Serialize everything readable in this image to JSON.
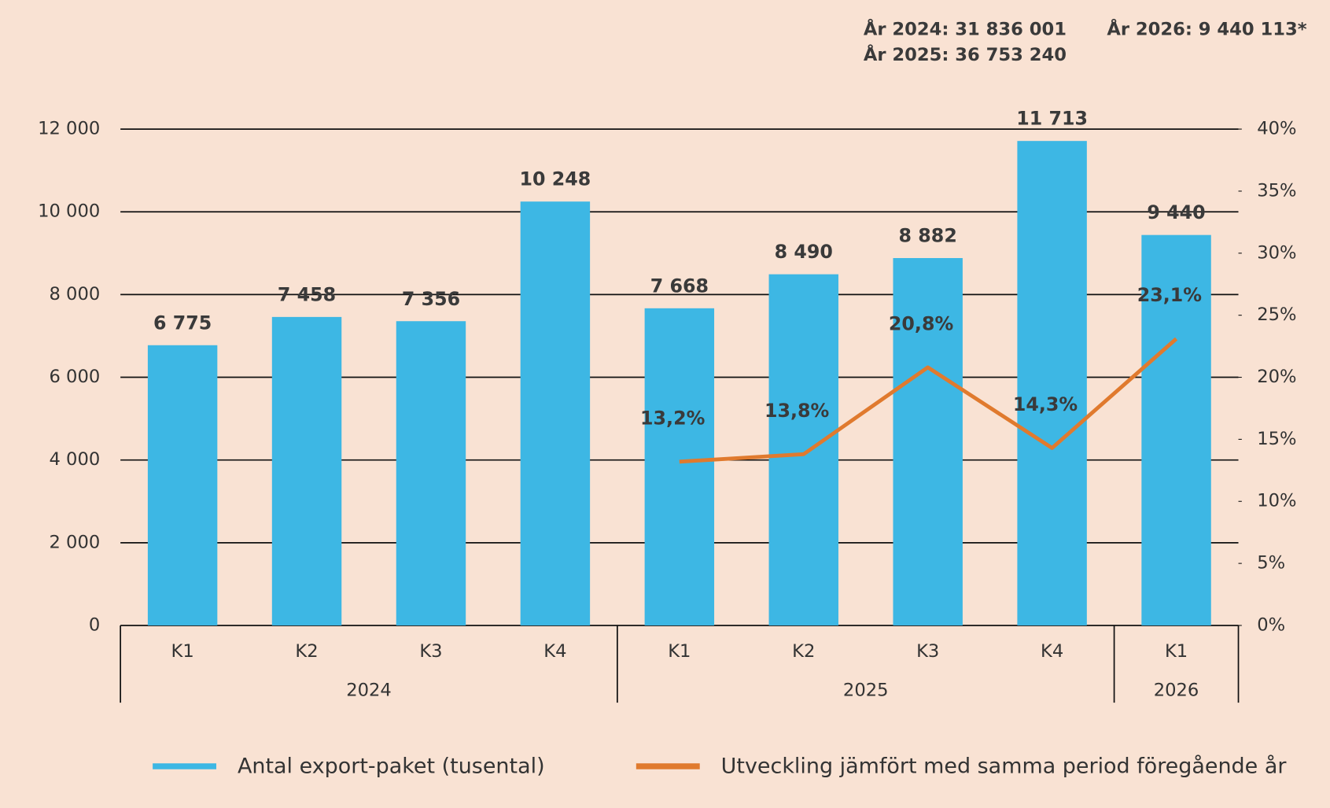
{
  "chart_data": {
    "type": "bar",
    "annotations": [
      "År 2024: 31 836 001",
      "År 2025: 36 753 240",
      "År 2026: 9 440 113*"
    ],
    "categories": [
      "K1",
      "K2",
      "K3",
      "K4",
      "K1",
      "K2",
      "K3",
      "K4",
      "K1"
    ],
    "category_groups": [
      "2024",
      "2024",
      "2024",
      "2024",
      "2025",
      "2025",
      "2025",
      "2025",
      "2026"
    ],
    "series": [
      {
        "name": "Antal export-paket (tusental)",
        "type": "bar",
        "color": "#3db7e4",
        "values": [
          6775,
          7458,
          7356,
          10248,
          7668,
          8490,
          8882,
          11713,
          9440
        ],
        "value_labels": [
          "6 775",
          "7 458",
          "7 356",
          "10 248",
          "7 668",
          "8 490",
          "8 882",
          "11 713",
          "9 440"
        ]
      },
      {
        "name": "Utveckling jämfört med samma period föregående år",
        "type": "line",
        "color": "#e07a2e",
        "axis": "y2",
        "values": [
          null,
          null,
          null,
          null,
          13.2,
          13.8,
          20.8,
          14.3,
          23.1
        ],
        "value_labels": [
          null,
          null,
          null,
          null,
          "13,2%",
          "13,8%",
          "20,8%",
          "14,3%",
          "23,1%"
        ]
      }
    ],
    "ylim": [
      0,
      12000
    ],
    "yticks": [
      0,
      {
        "value": 2000,
        "label": "2 000"
      },
      {
        "value": 4000,
        "label": "4 000"
      },
      {
        "value": 6000,
        "label": "6 000"
      },
      {
        "value": 8000,
        "label": "8 000"
      },
      {
        "value": 10000,
        "label": "10 000"
      },
      {
        "value": 12000,
        "label": "12 000"
      }
    ],
    "y2lim": [
      0,
      40
    ],
    "y2ticks": [
      {
        "value": 0,
        "label": "0%"
      },
      {
        "value": 5,
        "label": "5%"
      },
      {
        "value": 10,
        "label": "10%"
      },
      {
        "value": 15,
        "label": "15%"
      },
      {
        "value": 20,
        "label": "20%"
      },
      {
        "value": 25,
        "label": "25%"
      },
      {
        "value": 30,
        "label": "30%"
      },
      {
        "value": 35,
        "label": "35%"
      },
      {
        "value": 40,
        "label": "40%"
      }
    ],
    "grid": true,
    "legend": "bottom"
  }
}
